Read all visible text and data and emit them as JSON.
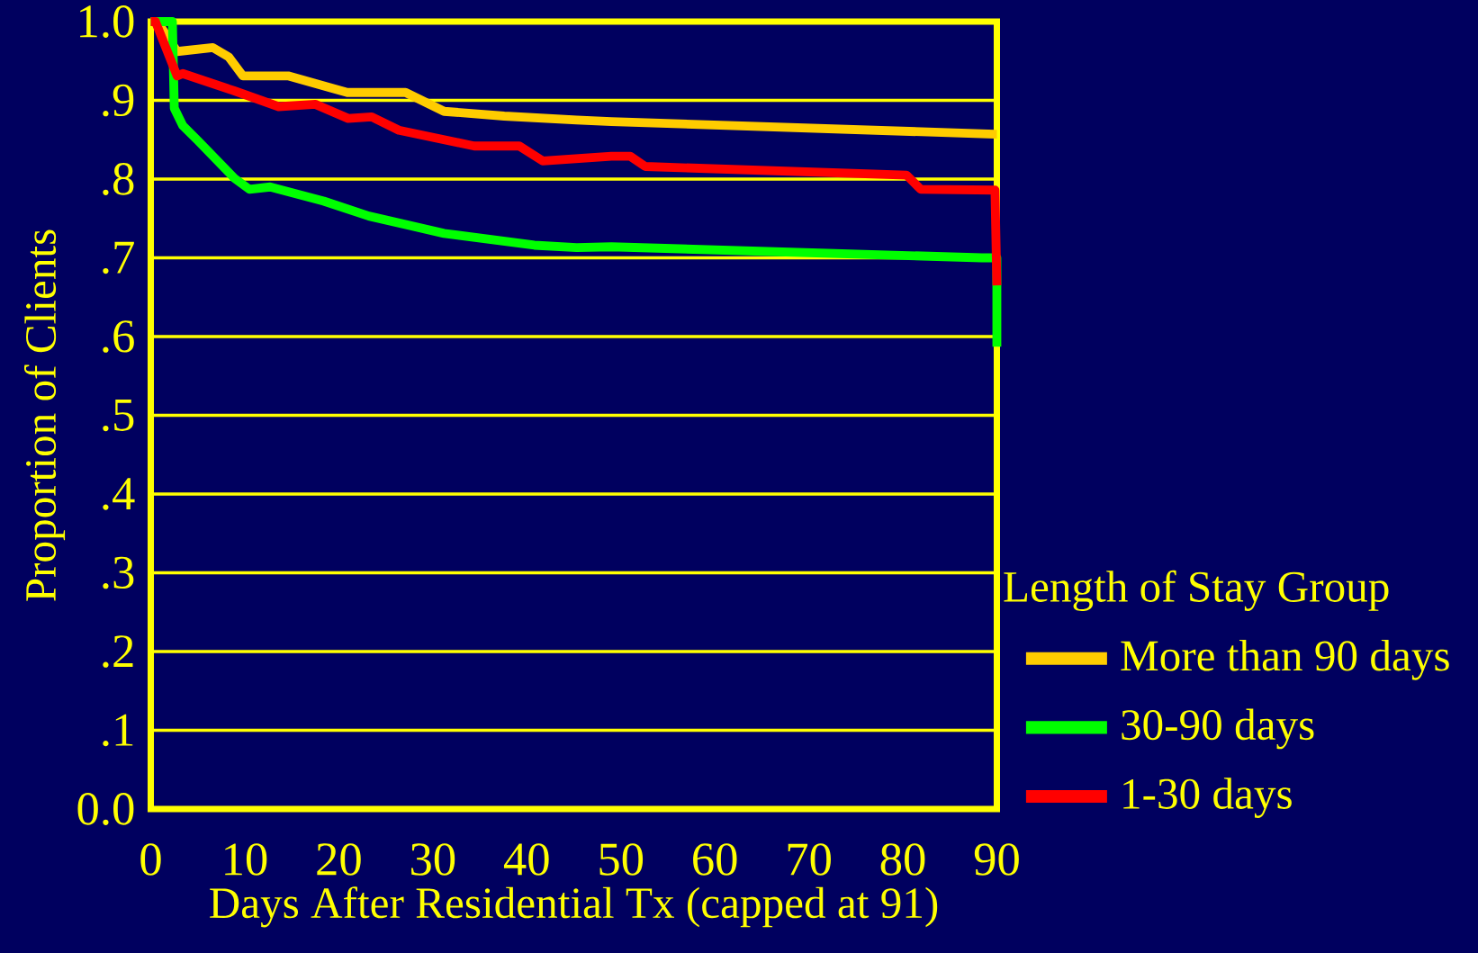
{
  "chart_data": {
    "type": "line",
    "xlabel": "Days After Residential Tx (capped at 91)",
    "ylabel": "Proportion of Clients",
    "legend_title": "Length of Stay Group",
    "xlim": [
      0,
      90
    ],
    "ylim": [
      0,
      1
    ],
    "xticks": [
      0,
      10,
      20,
      30,
      40,
      50,
      60,
      70,
      80,
      90
    ],
    "yticks": [
      {
        "value": 0,
        "label": "0.0"
      },
      {
        "value": 0.1,
        "label": ".1"
      },
      {
        "value": 0.2,
        "label": ".2"
      },
      {
        "value": 0.3,
        "label": ".3"
      },
      {
        "value": 0.4,
        "label": ".4"
      },
      {
        "value": 0.5,
        "label": ".5"
      },
      {
        "value": 0.6,
        "label": ".6"
      },
      {
        "value": 0.7,
        "label": ".7"
      },
      {
        "value": 0.8,
        "label": ".8"
      },
      {
        "value": 0.9,
        "label": ".9"
      },
      {
        "value": 1,
        "label": "1.0"
      }
    ],
    "grid": "y",
    "legend": "right",
    "marker": "none",
    "line_style": "solid",
    "series": [
      {
        "name": "More than 90 days",
        "color": "#ffcc00",
        "x": [
          0,
          0.7,
          2.8,
          6.6,
          8.3,
          9.8,
          14.6,
          19.1,
          20.9,
          27.1,
          31.2,
          37.6,
          45.3,
          49,
          89.8,
          90
        ],
        "values": [
          1.0,
          1.0,
          0.962,
          0.967,
          0.955,
          0.931,
          0.931,
          0.916,
          0.91,
          0.91,
          0.886,
          0.88,
          0.875,
          0.873,
          0.857,
          0.857
        ]
      },
      {
        "name": "30-90 days",
        "color": "#00ff00",
        "x": [
          0,
          2.3,
          2.5,
          3.4,
          5.0,
          8.9,
          10.5,
          12.7,
          18.4,
          23.2,
          31.2,
          40.8,
          45.3,
          49,
          88.4,
          90,
          90
        ],
        "values": [
          1.0,
          1.0,
          0.89,
          0.868,
          0.849,
          0.801,
          0.787,
          0.79,
          0.772,
          0.753,
          0.731,
          0.716,
          0.713,
          0.714,
          0.7,
          0.7,
          0.587
        ]
      },
      {
        "name": "1-30 days",
        "color": "#ff0000",
        "x": [
          0,
          0.5,
          2.8,
          3.4,
          8.9,
          13.6,
          17.5,
          21,
          23.5,
          26.4,
          34.4,
          39.2,
          41.7,
          49,
          51,
          52.6,
          80.4,
          81.9,
          89.8,
          90
        ],
        "values": [
          1.0,
          1.0,
          0.931,
          0.934,
          0.912,
          0.892,
          0.895,
          0.877,
          0.879,
          0.862,
          0.842,
          0.842,
          0.823,
          0.829,
          0.829,
          0.816,
          0.805,
          0.787,
          0.786,
          0.665
        ]
      }
    ]
  }
}
